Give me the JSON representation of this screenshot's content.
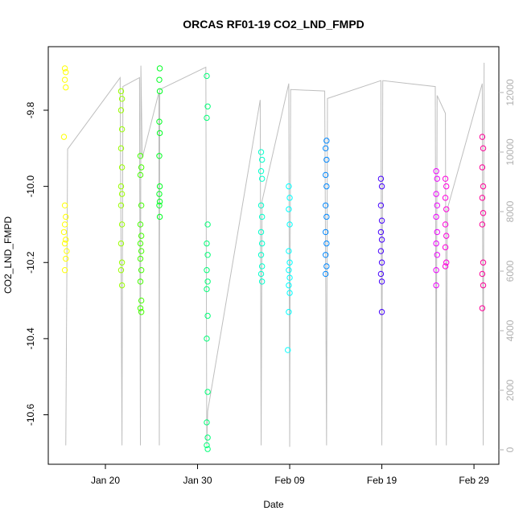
{
  "chart_data": {
    "type": "scatter",
    "title": "ORCAS RF01-19 CO2_LND_FMPD",
    "x_label": "Date",
    "y_label": "CO2_LND_FMPD",
    "xlim": [
      13.8,
      62.7
    ],
    "xticks": [
      {
        "value": 20,
        "label": "Jan 20"
      },
      {
        "value": 30,
        "label": "Jan 30"
      },
      {
        "value": 40,
        "label": "Feb 09"
      },
      {
        "value": 50,
        "label": "Feb 19"
      },
      {
        "value": 60,
        "label": "Feb 29"
      }
    ],
    "ylim": [
      -10.73,
      -9.633
    ],
    "yticks": [
      -9.8,
      {
        "value": -10,
        "label": "-10.0"
      },
      -10.2,
      -10.4,
      -10.6
    ],
    "y2lim": [
      -486,
      13540
    ],
    "y2ticks": [
      0,
      2000,
      4000,
      6000,
      8000,
      10000,
      12000
    ],
    "series": [
      {
        "type": "line",
        "axis": "y2",
        "color": "#bebebe",
        "x": [
          15.7,
          15.9,
          21.6,
          21.8,
          21.9,
          23.7,
          23.8,
          23.85,
          24.0,
          25.8,
          25.85,
          25.9,
          30.9,
          31.0,
          31.1,
          36.8,
          36.9,
          37.0,
          39.9,
          40.0,
          40.1,
          43.8,
          44.0,
          44.1,
          49.9,
          50.0,
          50.1,
          55.8,
          55.9,
          56.0,
          56.9,
          57.0,
          57.1,
          60.9,
          61.0,
          61.1
        ],
        "values": [
          150,
          10100,
          12500,
          150,
          12200,
          12500,
          150,
          12900,
          9800,
          12000,
          150,
          12100,
          12850,
          150,
          1300,
          11750,
          150,
          8350,
          12300,
          100,
          12100,
          12050,
          150,
          11800,
          12400,
          150,
          12400,
          12200,
          150,
          11900,
          11300,
          150,
          8080,
          12300,
          150,
          13000
        ]
      },
      {
        "color": "#ffff00",
        "x": [
          15.6,
          15.7,
          15.6,
          15.7,
          15.5,
          15.6,
          15.7,
          15.6,
          15.5,
          15.7,
          15.6,
          15.8,
          15.7,
          15.6
        ],
        "values": [
          -9.69,
          -9.7,
          -9.72,
          -9.74,
          -9.87,
          -10.05,
          -10.08,
          -10.1,
          -10.12,
          -10.14,
          -10.15,
          -10.17,
          -10.19,
          -10.22
        ]
      },
      {
        "color": "#99ff00",
        "x": [
          21.7,
          21.8,
          21.7,
          21.8,
          21.7,
          21.8,
          21.7,
          21.8,
          21.7,
          21.8,
          21.7,
          21.8,
          21.7,
          21.8
        ],
        "values": [
          -9.75,
          -9.77,
          -9.8,
          -9.85,
          -9.9,
          -9.95,
          -10.0,
          -10.02,
          -10.05,
          -10.1,
          -10.15,
          -10.2,
          -10.22,
          -10.26
        ]
      },
      {
        "color": "#44ff00",
        "x": [
          23.8,
          23.9,
          23.8,
          23.9,
          23.8,
          23.9,
          23.8,
          23.9,
          23.8,
          23.9,
          23.8,
          23.9,
          23.8,
          23.9
        ],
        "values": [
          -9.92,
          -9.95,
          -9.97,
          -10.05,
          -10.1,
          -10.13,
          -10.15,
          -10.17,
          -10.19,
          -10.22,
          -10.25,
          -10.3,
          -10.32,
          -10.33
        ]
      },
      {
        "color": "#00ff22",
        "x": [
          25.9,
          25.85,
          25.9,
          25.85,
          25.9,
          25.85,
          25.9,
          25.85,
          25.9,
          25.85,
          25.9
        ],
        "values": [
          -9.69,
          -9.72,
          -9.75,
          -9.83,
          -9.86,
          -9.92,
          -10.0,
          -10.02,
          -10.04,
          -10.05,
          -10.08
        ]
      },
      {
        "color": "#00ff77",
        "x": [
          31.0,
          31.1,
          31.0,
          31.1,
          31.0,
          31.1,
          31.0,
          31.1,
          31.0,
          31.1,
          31.0,
          31.1,
          31.0,
          31.1,
          31.0,
          31.1
        ],
        "values": [
          -9.71,
          -9.79,
          -9.82,
          -10.1,
          -10.15,
          -10.18,
          -10.22,
          -10.25,
          -10.27,
          -10.34,
          -10.4,
          -10.54,
          -10.62,
          -10.66,
          -10.68,
          -10.69
        ]
      },
      {
        "color": "#00ffcc",
        "x": [
          36.9,
          37.0,
          36.9,
          37.0,
          36.9,
          37.0,
          36.9,
          37.0,
          36.9,
          37.0,
          36.9,
          37.0
        ],
        "values": [
          -9.91,
          -9.93,
          -9.96,
          -9.98,
          -10.05,
          -10.08,
          -10.12,
          -10.15,
          -10.18,
          -10.21,
          -10.23,
          -10.25
        ]
      },
      {
        "color": "#00ffff",
        "x": [
          39.9,
          40.0,
          39.9,
          40.0,
          39.9,
          40.0,
          39.9,
          40.0,
          39.9,
          40.0,
          39.9,
          39.8
        ],
        "values": [
          -10.0,
          -10.03,
          -10.06,
          -10.1,
          -10.17,
          -10.2,
          -10.22,
          -10.24,
          -10.26,
          -10.28,
          -10.33,
          -10.43
        ]
      },
      {
        "color": "#0088ff",
        "x": [
          44.0,
          43.9,
          44.0,
          43.9,
          44.0,
          43.9,
          44.0,
          43.9,
          44.0,
          43.9,
          44.0,
          43.9
        ],
        "values": [
          -9.88,
          -9.9,
          -9.93,
          -9.97,
          -10.0,
          -10.05,
          -10.08,
          -10.12,
          -10.15,
          -10.18,
          -10.21,
          -10.23
        ]
      },
      {
        "color": "#4400ff",
        "x": [
          49.9,
          50.0,
          49.9,
          50.0,
          49.9,
          50.0,
          49.9,
          50.0,
          49.9,
          50.0,
          50.0
        ],
        "values": [
          -9.98,
          -10.0,
          -10.05,
          -10.09,
          -10.12,
          -10.14,
          -10.17,
          -10.2,
          -10.23,
          -10.25,
          -10.33
        ]
      },
      {
        "color": "#ee00ff",
        "x": [
          55.9,
          56.0,
          55.9,
          56.0,
          55.9,
          56.0,
          55.9,
          56.0,
          55.9,
          55.9
        ],
        "values": [
          -9.96,
          -9.98,
          -10.02,
          -10.05,
          -10.08,
          -10.12,
          -10.15,
          -10.18,
          -10.22,
          -10.26
        ]
      },
      {
        "color": "#ff00dd",
        "x": [
          56.9,
          57.0,
          56.9,
          57.0,
          56.9,
          57.0,
          56.9,
          57.0,
          56.9
        ],
        "values": [
          -9.98,
          -10.0,
          -10.03,
          -10.06,
          -10.1,
          -10.13,
          -10.16,
          -10.2,
          -10.21
        ]
      },
      {
        "color": "#ff0099",
        "x": [
          60.9,
          61.0,
          60.9,
          61.0,
          60.9,
          61.0,
          60.9,
          61.0,
          60.9,
          61.0,
          60.9
        ],
        "values": [
          -9.87,
          -9.9,
          -9.95,
          -10.0,
          -10.03,
          -10.07,
          -10.1,
          -10.2,
          -10.23,
          -10.26,
          -10.32
        ]
      }
    ]
  }
}
